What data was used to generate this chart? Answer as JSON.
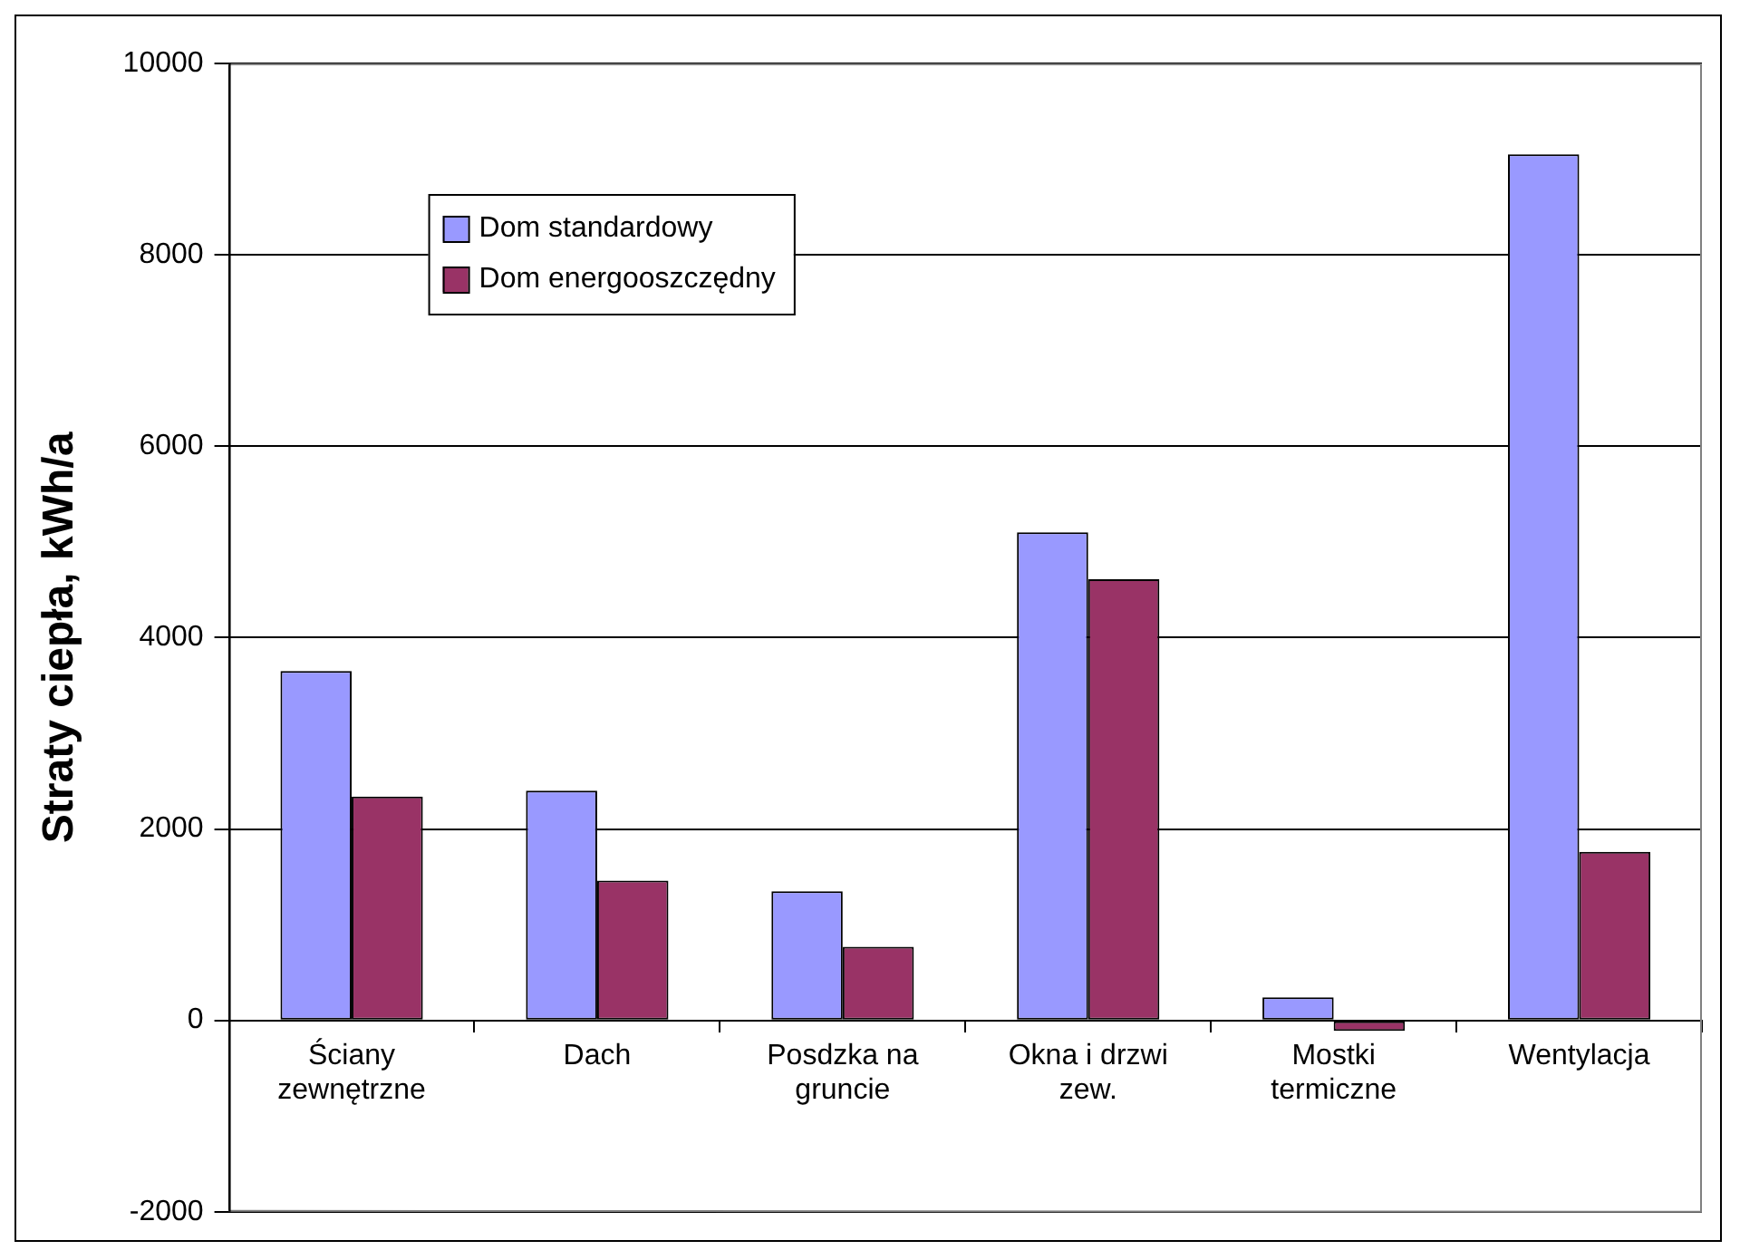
{
  "chart_data": {
    "type": "bar",
    "ylabel": "Straty ciepła, kWh/a",
    "categories": [
      "Ściany zewnętrzne",
      "Dach",
      "Posdzka na gruncie",
      "Okna i drzwi zew.",
      "Mostki termiczne",
      "Wentylacja"
    ],
    "series": [
      {
        "name": "Dom standardowy",
        "color": "#9999ff",
        "values": [
          3650,
          2400,
          1350,
          5100,
          240,
          9050
        ]
      },
      {
        "name": "Dom energooszczędny",
        "color": "#993366",
        "values": [
          2340,
          1460,
          770,
          4610,
          -110,
          1760
        ]
      }
    ],
    "ylim": [
      -2000,
      10000
    ],
    "yticks": [
      -2000,
      0,
      2000,
      4000,
      6000,
      8000,
      10000
    ],
    "grid": "y",
    "legend": "top left"
  }
}
